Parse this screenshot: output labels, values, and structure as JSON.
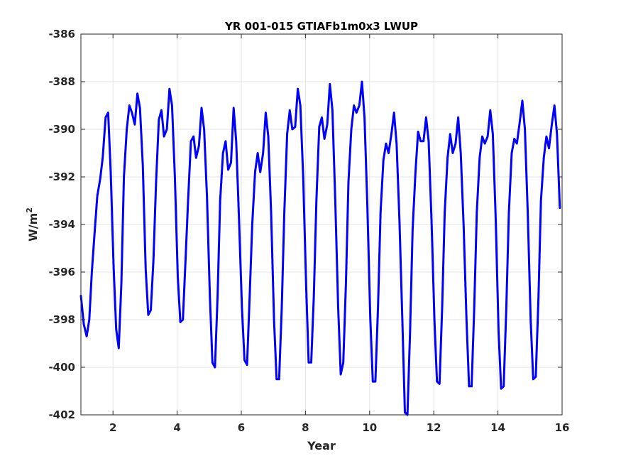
{
  "chart_data": {
    "type": "line",
    "title": "YR 001-015 GTIAFb1m0x3 LWUP",
    "xlabel": "Year",
    "ylabel_base": "W/m",
    "ylabel_sup": "2",
    "xlim": [
      1,
      16
    ],
    "ylim": [
      -402,
      -386
    ],
    "xticks": [
      2,
      4,
      6,
      8,
      10,
      12,
      14,
      16
    ],
    "yticks": [
      -402,
      -400,
      -398,
      -396,
      -394,
      -392,
      -390,
      -388,
      -386
    ],
    "grid": true,
    "line_color": "#0000ff",
    "series": [
      {
        "x": [
          1.0,
          1.09,
          1.18,
          1.26,
          1.34,
          1.43,
          1.51,
          1.6,
          1.68,
          1.77,
          1.85,
          1.93,
          2.02,
          2.1,
          2.18,
          2.26,
          2.34,
          2.43,
          2.51,
          2.59,
          2.68,
          2.76,
          2.84,
          2.93,
          3.02,
          3.1,
          3.18,
          3.26,
          3.34,
          3.43,
          3.51,
          3.59,
          3.68,
          3.76,
          3.84,
          3.93,
          4.02,
          4.1,
          4.18,
          4.26,
          4.34,
          4.43,
          4.51,
          4.59,
          4.68,
          4.76,
          4.84,
          4.93,
          5.02,
          5.1,
          5.18,
          5.26,
          5.34,
          5.43,
          5.51,
          5.59,
          5.68,
          5.76,
          5.84,
          5.93,
          6.02,
          6.1,
          6.18,
          6.26,
          6.34,
          6.43,
          6.51,
          6.59,
          6.68,
          6.76,
          6.84,
          6.93,
          7.02,
          7.1,
          7.18,
          7.26,
          7.34,
          7.43,
          7.51,
          7.59,
          7.68,
          7.76,
          7.84,
          7.93,
          8.02,
          8.1,
          8.18,
          8.26,
          8.34,
          8.43,
          8.51,
          8.59,
          8.68,
          8.76,
          8.84,
          8.93,
          9.02,
          9.1,
          9.18,
          9.26,
          9.34,
          9.43,
          9.51,
          9.59,
          9.68,
          9.76,
          9.84,
          9.93,
          10.02,
          10.1,
          10.18,
          10.26,
          10.34,
          10.43,
          10.51,
          10.59,
          10.68,
          10.76,
          10.84,
          10.93,
          11.02,
          11.1,
          11.18,
          11.26,
          11.34,
          11.43,
          11.51,
          11.59,
          11.68,
          11.76,
          11.84,
          11.93,
          12.02,
          12.1,
          12.18,
          12.26,
          12.34,
          12.43,
          12.51,
          12.59,
          12.68,
          12.76,
          12.84,
          12.93,
          13.02,
          13.1,
          13.18,
          13.26,
          13.34,
          13.43,
          13.51,
          13.59,
          13.68,
          13.76,
          13.84,
          13.93,
          14.02,
          14.1,
          14.18,
          14.26,
          14.34,
          14.43,
          14.51,
          14.59,
          14.68,
          14.76,
          14.84,
          14.93,
          15.02,
          15.1,
          15.18,
          15.26,
          15.34,
          15.43,
          15.51,
          15.59,
          15.68,
          15.76,
          15.84,
          15.93
        ],
        "values": [
          -397.0,
          -398.2,
          -398.7,
          -398.0,
          -396.0,
          -394.3,
          -392.8,
          -392.1,
          -391.2,
          -389.5,
          -389.3,
          -391.8,
          -395.8,
          -398.4,
          -399.2,
          -396.5,
          -392.0,
          -390.0,
          -389.0,
          -389.3,
          -389.8,
          -388.5,
          -389.1,
          -391.5,
          -395.9,
          -397.8,
          -397.6,
          -395.5,
          -392.3,
          -389.6,
          -389.2,
          -390.3,
          -390.0,
          -388.3,
          -389.0,
          -392.0,
          -396.2,
          -398.1,
          -398.0,
          -395.5,
          -393.0,
          -390.5,
          -390.3,
          -391.2,
          -390.7,
          -389.1,
          -390.0,
          -392.8,
          -397.0,
          -399.8,
          -400.0,
          -397.0,
          -393.0,
          -391.0,
          -390.5,
          -391.7,
          -391.4,
          -389.1,
          -390.5,
          -393.8,
          -397.5,
          -399.7,
          -399.9,
          -397.0,
          -394.0,
          -391.8,
          -391.0,
          -391.8,
          -391.0,
          -389.3,
          -390.3,
          -393.5,
          -398.0,
          -400.5,
          -400.5,
          -397.5,
          -393.5,
          -390.2,
          -389.2,
          -390.0,
          -389.9,
          -388.3,
          -389.0,
          -392.0,
          -396.5,
          -399.8,
          -399.8,
          -397.0,
          -393.0,
          -389.9,
          -389.5,
          -390.4,
          -389.8,
          -388.1,
          -389.2,
          -393.0,
          -397.5,
          -400.3,
          -399.8,
          -396.5,
          -392.2,
          -390.0,
          -389.0,
          -389.3,
          -389.0,
          -388.0,
          -389.5,
          -393.2,
          -397.9,
          -400.6,
          -400.6,
          -397.5,
          -393.5,
          -391.3,
          -390.6,
          -391.0,
          -390.2,
          -389.3,
          -390.6,
          -393.8,
          -398.0,
          -401.9,
          -402.0,
          -398.5,
          -394.2,
          -391.8,
          -390.1,
          -390.5,
          -390.5,
          -389.5,
          -390.5,
          -393.8,
          -398.0,
          -400.6,
          -400.7,
          -397.5,
          -393.5,
          -391.2,
          -390.2,
          -391.0,
          -390.6,
          -389.5,
          -391.0,
          -394.0,
          -398.0,
          -400.8,
          -400.8,
          -397.5,
          -393.5,
          -391.2,
          -390.3,
          -390.6,
          -390.3,
          -389.2,
          -390.2,
          -393.7,
          -398.5,
          -400.9,
          -400.8,
          -397.5,
          -393.5,
          -391.0,
          -390.4,
          -390.6,
          -389.7,
          -388.8,
          -390.0,
          -393.5,
          -398.0,
          -400.5,
          -400.4,
          -397.2,
          -393.0,
          -391.2,
          -390.3,
          -390.8,
          -389.8,
          -389.0,
          -390.2,
          -393.3
        ]
      }
    ]
  }
}
